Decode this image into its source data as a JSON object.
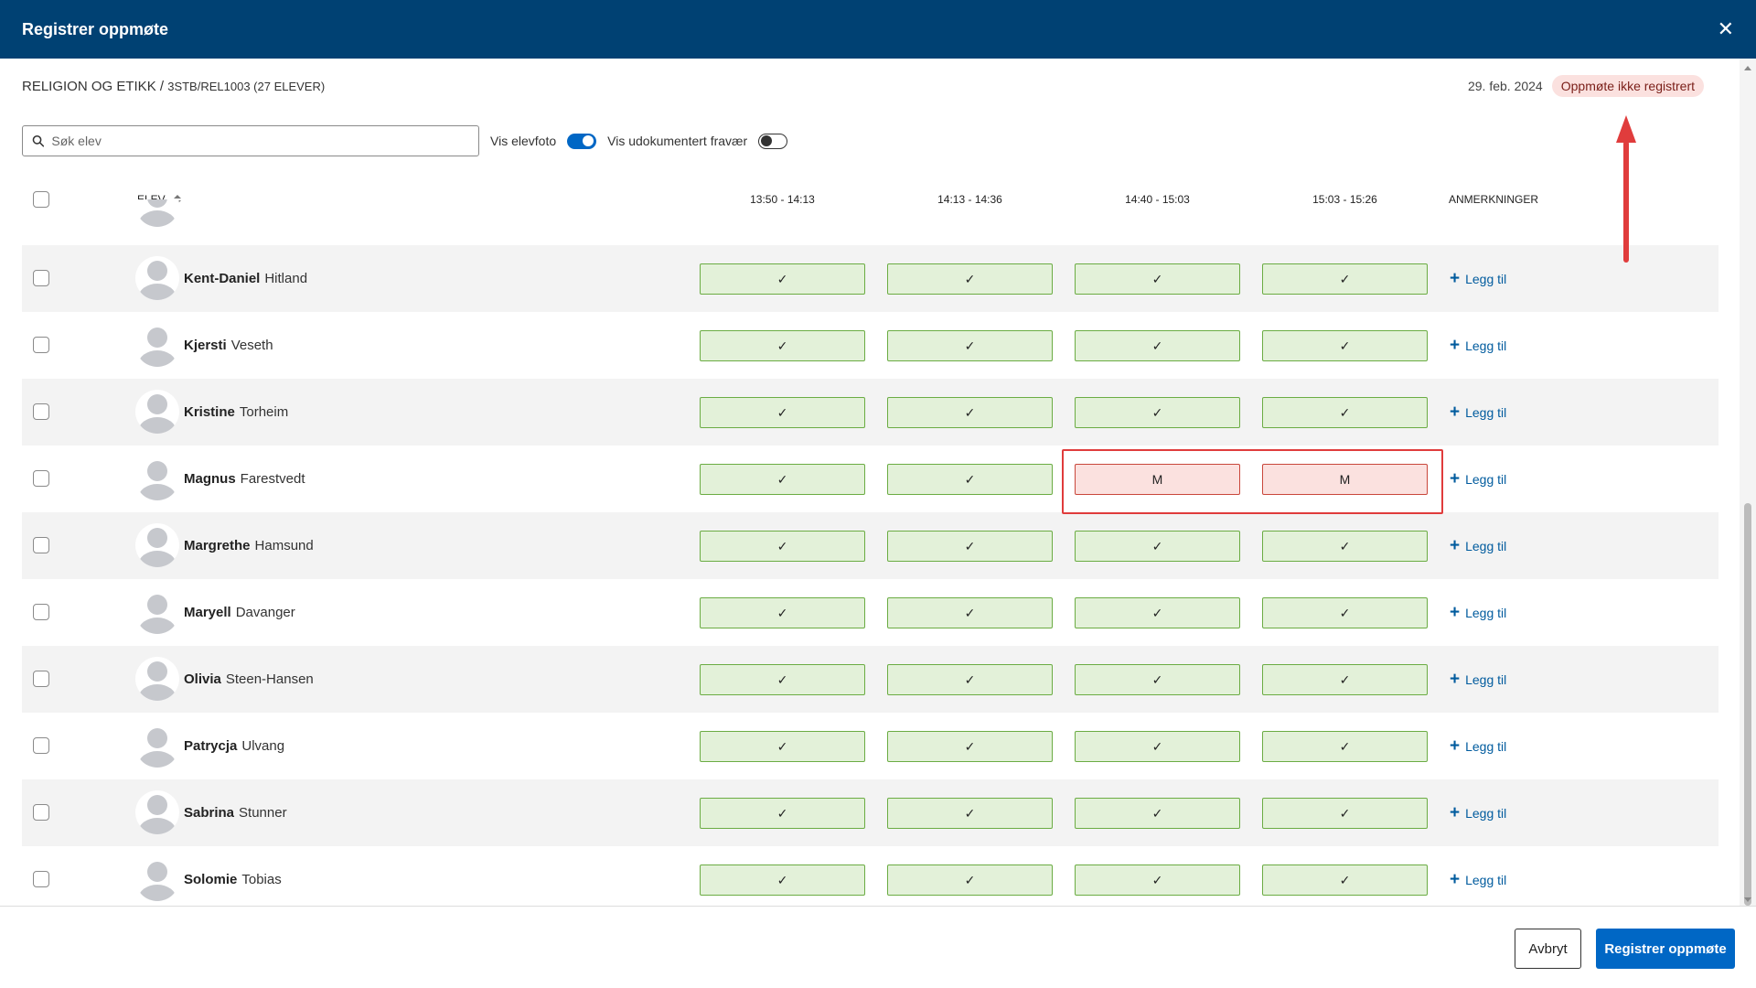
{
  "dialog": {
    "title": "Registrer oppmøte"
  },
  "course": {
    "name": "RELIGION OG ETIKK",
    "code": "3STB/REL1003 (27 ELEVER)"
  },
  "session": {
    "date": "29. feb. 2024",
    "status": "Oppmøte ikke registrert"
  },
  "toolbar": {
    "search_placeholder": "Søk elev",
    "show_photo_label": "Vis elevfoto",
    "show_photo_on": true,
    "show_undocumented_label": "Vis udokumentert fravær",
    "show_undocumented_on": false
  },
  "columns": {
    "student": "ELEV",
    "periods": [
      "13:50 - 14:13",
      "14:13 - 14:36",
      "14:40 - 15:03",
      "15:03 - 15:26"
    ],
    "remarks": "ANMERKNINGER"
  },
  "add_remark_label": "Legg til",
  "present_mark": "✓",
  "absent_mark": "M",
  "students": [
    {
      "first": "Kent-Daniel",
      "last": "Hitland",
      "attendance": [
        "present",
        "present",
        "present",
        "present"
      ]
    },
    {
      "first": "Kjersti",
      "last": "Veseth",
      "attendance": [
        "present",
        "present",
        "present",
        "present"
      ]
    },
    {
      "first": "Kristine",
      "last": "Torheim",
      "attendance": [
        "present",
        "present",
        "present",
        "present"
      ]
    },
    {
      "first": "Magnus",
      "last": "Farestvedt",
      "attendance": [
        "present",
        "present",
        "absent",
        "absent"
      ]
    },
    {
      "first": "Margrethe",
      "last": "Hamsund",
      "attendance": [
        "present",
        "present",
        "present",
        "present"
      ]
    },
    {
      "first": "Maryell",
      "last": "Davanger",
      "attendance": [
        "present",
        "present",
        "present",
        "present"
      ]
    },
    {
      "first": "Olivia",
      "last": "Steen-Hansen",
      "attendance": [
        "present",
        "present",
        "present",
        "present"
      ]
    },
    {
      "first": "Patrycja",
      "last": "Ulvang",
      "attendance": [
        "present",
        "present",
        "present",
        "present"
      ]
    },
    {
      "first": "Sabrina",
      "last": "Stunner",
      "attendance": [
        "present",
        "present",
        "present",
        "present"
      ]
    },
    {
      "first": "Solomie",
      "last": "Tobias",
      "attendance": [
        "present",
        "present",
        "present",
        "present"
      ]
    }
  ],
  "footer": {
    "cancel_label": "Avbryt",
    "submit_label": "Registrer oppmøte"
  },
  "colors": {
    "header_bg": "#004173",
    "primary": "#0067c5",
    "present_bg": "#e3f1d9",
    "present_border": "#6bac43",
    "absent_bg": "#fbe1df",
    "absent_border": "#c9473b",
    "annotation": "#e03c3c"
  }
}
